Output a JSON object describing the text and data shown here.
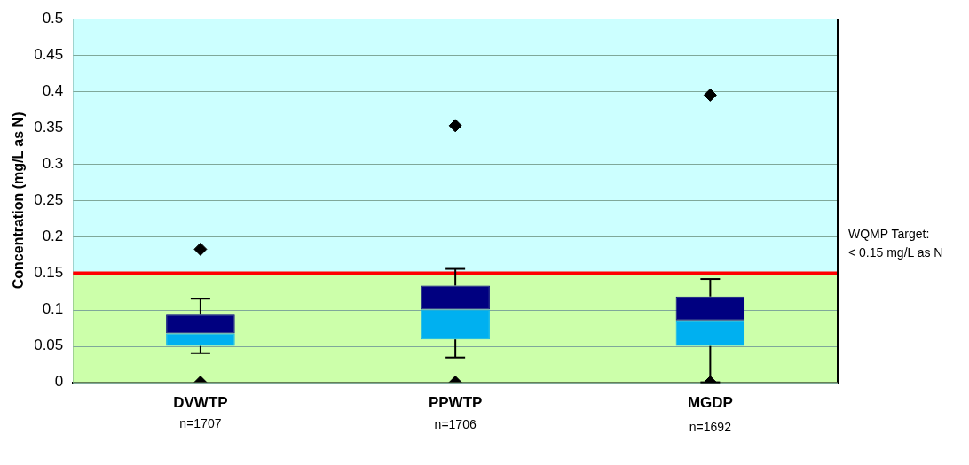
{
  "chart_data": {
    "type": "box",
    "ylabel": "Concentration (mg/L as N)",
    "categories": [
      "DVWTP",
      "PPWTP",
      "MGDP"
    ],
    "series": [
      {
        "color": "#000080",
        "colors": [
          "#00b0f0",
          "#00b0f0",
          "#00b0f0"
        ],
        "boxes": [
          {
            "low": 0.04,
            "q1": 0.05,
            "median": 0.067,
            "q3": 0.093,
            "high": 0.115,
            "outliers": [
              0,
              0.183
            ]
          },
          {
            "low": 0.034,
            "q1": 0.059,
            "median": 0.1,
            "q3": 0.133,
            "high": 0.156,
            "outliers": [
              0,
              0.353
            ]
          },
          {
            "low": 0,
            "q1": 0.05,
            "median": 0.085,
            "q3": 0.118,
            "high": 0.142,
            "outliers": [
              0,
              0.395
            ]
          }
        ]
      }
    ],
    "ylim": [
      0,
      0.5
    ],
    "yticks": [
      0,
      0.05,
      0.1,
      0.15,
      0.2,
      0.25,
      0.3,
      0.35,
      0.4,
      0.45,
      0.5
    ],
    "grid": "y",
    "legend": false,
    "marker": "diamond",
    "bands": [
      {
        "axis": "y",
        "from": 0,
        "to": 0.15,
        "color": "#ccffaa"
      },
      {
        "axis": "y",
        "from": 0.15,
        "to": 0.5,
        "color": "#ccffff"
      }
    ],
    "ref_lines": [
      {
        "axis": "y",
        "value": 0.15,
        "label": "WQMP Target:\n< 0.15 mg/L as N",
        "color": "#ff0000"
      }
    ],
    "annotations": [
      "n=1707",
      "n=1706",
      "n=1692"
    ]
  }
}
